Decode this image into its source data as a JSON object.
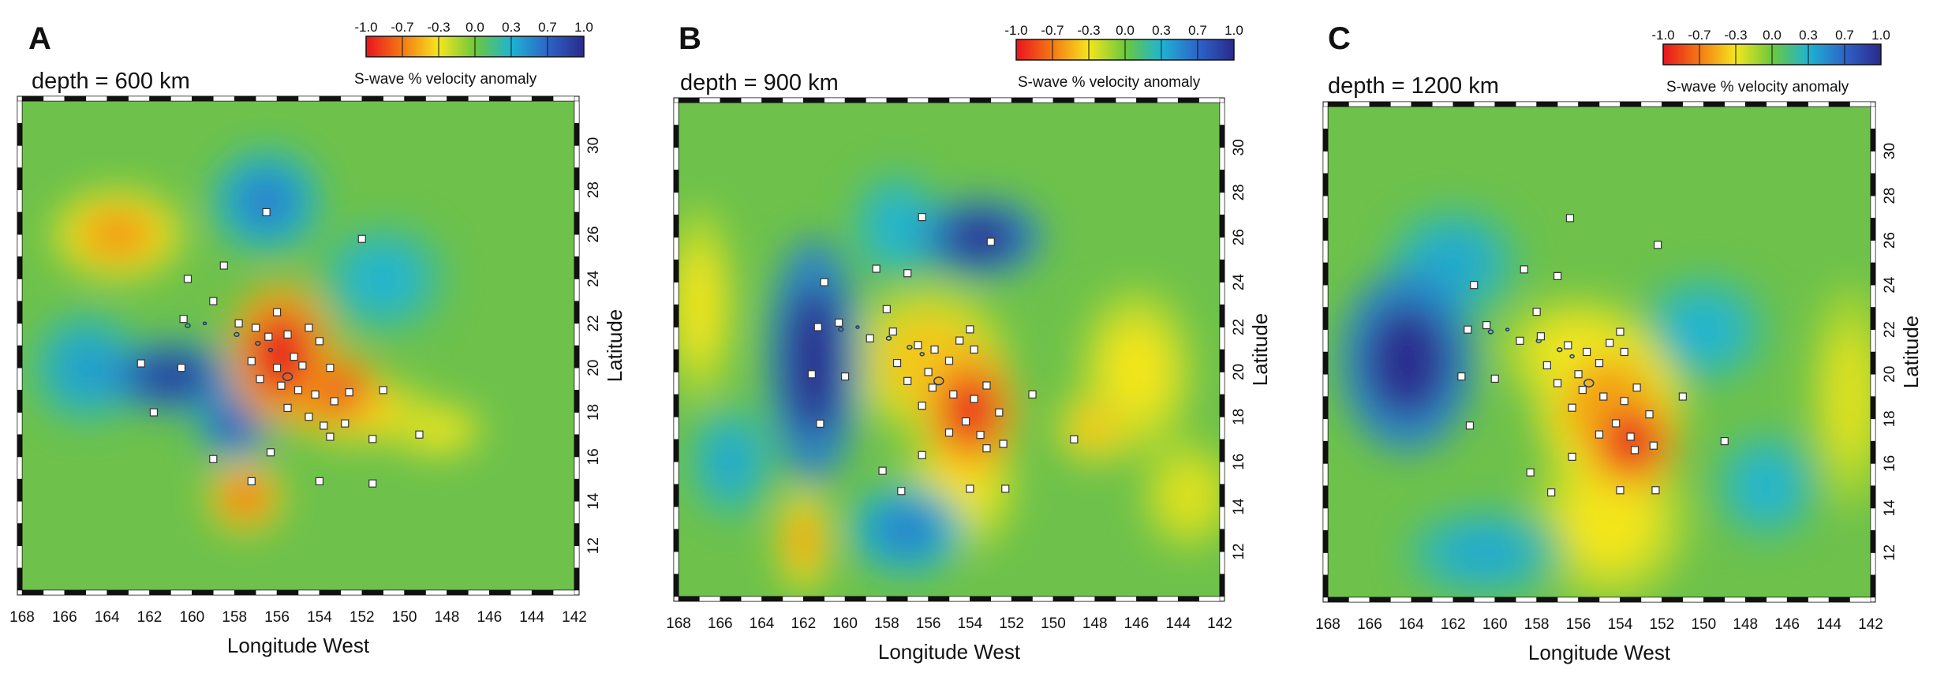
{
  "figure": {
    "colorbar": {
      "ticks": [
        "-1.0",
        "-0.7",
        "-0.3",
        "0.0",
        "0.3",
        "0.7",
        "1.0"
      ],
      "title": "S-wave % velocity anomaly",
      "colors": [
        "#e8141e",
        "#f47a14",
        "#f5e61e",
        "#6cc83c",
        "#1eb4d2",
        "#2d64c8",
        "#2a2a8c"
      ]
    },
    "xlabel": "Longitude West",
    "ylabel": "Latitude",
    "x_ticks": [
      "168",
      "166",
      "164",
      "162",
      "160",
      "158",
      "156",
      "154",
      "152",
      "150",
      "148",
      "146",
      "144",
      "142"
    ],
    "y_ticks": [
      "12",
      "14",
      "16",
      "18",
      "20",
      "22",
      "24",
      "26",
      "28",
      "30"
    ],
    "map_background": "#6ec24c"
  },
  "chart_data": [
    {
      "type": "heatmap",
      "panel": "A",
      "depth_label": "depth = 600 km",
      "xlim": [
        168,
        142
      ],
      "ylim": [
        10,
        32
      ],
      "xlabel": "Longitude West",
      "ylabel": "Latitude",
      "anomalies": [
        {
          "lon": 155.8,
          "lat": 20.6,
          "rx": 2.0,
          "ry": 2.6,
          "value": -1.0
        },
        {
          "lon": 153.5,
          "lat": 19.0,
          "rx": 2.0,
          "ry": 1.4,
          "value": -0.95
        },
        {
          "lon": 152.0,
          "lat": 18.0,
          "rx": 2.8,
          "ry": 1.2,
          "value": -0.4
        },
        {
          "lon": 157.5,
          "lat": 14.2,
          "rx": 1.4,
          "ry": 1.3,
          "value": -0.75
        },
        {
          "lon": 163.5,
          "lat": 26.0,
          "rx": 2.4,
          "ry": 1.6,
          "value": -0.6
        },
        {
          "lon": 148.5,
          "lat": 17.2,
          "rx": 1.8,
          "ry": 1.0,
          "value": -0.35
        },
        {
          "lon": 161.0,
          "lat": 19.6,
          "rx": 2.5,
          "ry": 1.3,
          "value": 0.95
        },
        {
          "lon": 158.0,
          "lat": 17.5,
          "rx": 1.4,
          "ry": 1.4,
          "value": 0.75
        },
        {
          "lon": 156.5,
          "lat": 27.5,
          "rx": 2.0,
          "ry": 1.8,
          "value": 0.55
        },
        {
          "lon": 165.0,
          "lat": 20.0,
          "rx": 2.0,
          "ry": 2.0,
          "value": 0.4
        },
        {
          "lon": 151.0,
          "lat": 24.0,
          "rx": 2.4,
          "ry": 2.0,
          "value": 0.3
        }
      ],
      "stations": [
        [
          156.5,
          27.0
        ],
        [
          152.0,
          25.8
        ],
        [
          158.5,
          24.6
        ],
        [
          160.2,
          24.0
        ],
        [
          159.0,
          23.0
        ],
        [
          156.0,
          22.5
        ],
        [
          157.8,
          22.0
        ],
        [
          157.0,
          21.8
        ],
        [
          156.4,
          21.4
        ],
        [
          155.5,
          21.5
        ],
        [
          154.5,
          21.8
        ],
        [
          154.0,
          21.2
        ],
        [
          155.2,
          20.5
        ],
        [
          154.8,
          20.1
        ],
        [
          153.5,
          20.0
        ],
        [
          156.0,
          20.0
        ],
        [
          157.2,
          20.3
        ],
        [
          156.8,
          19.5
        ],
        [
          155.8,
          19.2
        ],
        [
          155.0,
          19.0
        ],
        [
          154.2,
          18.8
        ],
        [
          153.3,
          18.5
        ],
        [
          152.6,
          18.9
        ],
        [
          151.0,
          19.0
        ],
        [
          155.5,
          18.2
        ],
        [
          154.5,
          17.8
        ],
        [
          153.8,
          17.4
        ],
        [
          152.8,
          17.5
        ],
        [
          153.5,
          16.9
        ],
        [
          151.5,
          16.8
        ],
        [
          149.3,
          17.0
        ],
        [
          156.3,
          16.2
        ],
        [
          159.0,
          15.9
        ],
        [
          157.2,
          14.9
        ],
        [
          154.0,
          14.9
        ],
        [
          151.5,
          14.8
        ],
        [
          162.4,
          20.2
        ],
        [
          160.5,
          20.0
        ],
        [
          161.8,
          18.0
        ],
        [
          160.4,
          22.2
        ]
      ]
    },
    {
      "type": "heatmap",
      "panel": "B",
      "depth_label": "depth = 900 km",
      "xlim": [
        168,
        142
      ],
      "ylim": [
        10,
        32
      ],
      "xlabel": "Longitude West",
      "ylabel": "Latitude",
      "anomalies": [
        {
          "lon": 161.5,
          "lat": 20.5,
          "rx": 1.8,
          "ry": 4.4,
          "value": 1.0
        },
        {
          "lon": 153.5,
          "lat": 26.0,
          "rx": 2.4,
          "ry": 1.4,
          "value": 1.0
        },
        {
          "lon": 154.0,
          "lat": 18.3,
          "rx": 1.8,
          "ry": 2.3,
          "value": -0.95
        },
        {
          "lon": 156.0,
          "lat": 20.5,
          "rx": 3.0,
          "ry": 2.6,
          "value": -0.45
        },
        {
          "lon": 154.5,
          "lat": 15.0,
          "rx": 2.2,
          "ry": 2.5,
          "value": -0.35
        },
        {
          "lon": 162.0,
          "lat": 12.5,
          "rx": 1.0,
          "ry": 1.8,
          "value": -0.6
        },
        {
          "lon": 167.0,
          "lat": 23.0,
          "rx": 1.3,
          "ry": 3.5,
          "value": -0.35
        },
        {
          "lon": 146.0,
          "lat": 20.0,
          "rx": 2.2,
          "ry": 3.0,
          "value": -0.35
        },
        {
          "lon": 148.0,
          "lat": 17.5,
          "rx": 1.5,
          "ry": 1.3,
          "value": -0.45
        },
        {
          "lon": 143.5,
          "lat": 14.5,
          "rx": 1.8,
          "ry": 2.0,
          "value": -0.3
        },
        {
          "lon": 157.0,
          "lat": 13.0,
          "rx": 2.2,
          "ry": 1.6,
          "value": 0.55
        },
        {
          "lon": 165.5,
          "lat": 16.0,
          "rx": 1.6,
          "ry": 2.0,
          "value": 0.35
        },
        {
          "lon": 157.5,
          "lat": 26.5,
          "rx": 1.8,
          "ry": 2.0,
          "value": 0.3
        }
      ],
      "stations": [
        [
          156.3,
          26.9
        ],
        [
          153.0,
          25.8
        ],
        [
          158.5,
          24.6
        ],
        [
          157.0,
          24.4
        ],
        [
          161.0,
          24.0
        ],
        [
          158.0,
          22.8
        ],
        [
          160.3,
          22.2
        ],
        [
          161.3,
          22.0
        ],
        [
          158.8,
          21.5
        ],
        [
          157.7,
          21.8
        ],
        [
          156.5,
          21.2
        ],
        [
          155.7,
          21.0
        ],
        [
          154.5,
          21.4
        ],
        [
          154.0,
          21.9
        ],
        [
          153.8,
          21.0
        ],
        [
          155.0,
          20.5
        ],
        [
          156.0,
          20.0
        ],
        [
          157.5,
          20.4
        ],
        [
          157.0,
          19.6
        ],
        [
          155.8,
          19.3
        ],
        [
          154.8,
          19.0
        ],
        [
          153.8,
          18.8
        ],
        [
          153.2,
          19.4
        ],
        [
          154.2,
          17.8
        ],
        [
          153.5,
          17.2
        ],
        [
          152.6,
          18.2
        ],
        [
          151.0,
          19.0
        ],
        [
          149.0,
          17.0
        ],
        [
          152.4,
          16.8
        ],
        [
          153.2,
          16.6
        ],
        [
          156.3,
          16.3
        ],
        [
          158.2,
          15.6
        ],
        [
          157.3,
          14.7
        ],
        [
          154.0,
          14.8
        ],
        [
          152.3,
          14.8
        ],
        [
          161.6,
          19.9
        ],
        [
          160.0,
          19.8
        ],
        [
          161.2,
          17.7
        ],
        [
          155.0,
          17.3
        ],
        [
          156.3,
          18.5
        ]
      ]
    },
    {
      "type": "heatmap",
      "panel": "C",
      "depth_label": "depth = 1200 km",
      "xlim": [
        168,
        142
      ],
      "ylim": [
        10,
        32
      ],
      "xlabel": "Longitude West",
      "ylabel": "Latitude",
      "anomalies": [
        {
          "lon": 164.2,
          "lat": 20.6,
          "rx": 2.6,
          "ry": 3.3,
          "value": 1.0
        },
        {
          "lon": 153.5,
          "lat": 17.0,
          "rx": 1.8,
          "ry": 1.8,
          "value": -1.0
        },
        {
          "lon": 154.5,
          "lat": 18.5,
          "rx": 2.8,
          "ry": 2.8,
          "value": -0.6
        },
        {
          "lon": 154.5,
          "lat": 13.5,
          "rx": 3.0,
          "ry": 3.0,
          "value": -0.35
        },
        {
          "lon": 156.0,
          "lat": 21.0,
          "rx": 3.0,
          "ry": 2.0,
          "value": -0.35
        },
        {
          "lon": 143.0,
          "lat": 19.0,
          "rx": 1.5,
          "ry": 4.0,
          "value": -0.3
        },
        {
          "lon": 160.5,
          "lat": 12.0,
          "rx": 3.0,
          "ry": 1.6,
          "value": 0.35
        },
        {
          "lon": 162.0,
          "lat": 25.0,
          "rx": 2.5,
          "ry": 2.0,
          "value": 0.35
        },
        {
          "lon": 150.0,
          "lat": 22.0,
          "rx": 2.5,
          "ry": 2.0,
          "value": 0.3
        },
        {
          "lon": 147.0,
          "lat": 15.0,
          "rx": 2.0,
          "ry": 2.0,
          "value": 0.3
        }
      ],
      "stations": [
        [
          156.4,
          27.0
        ],
        [
          152.2,
          25.8
        ],
        [
          158.6,
          24.7
        ],
        [
          157.0,
          24.4
        ],
        [
          161.0,
          24.0
        ],
        [
          158.0,
          22.8
        ],
        [
          160.4,
          22.2
        ],
        [
          161.3,
          22.0
        ],
        [
          158.8,
          21.5
        ],
        [
          157.8,
          21.7
        ],
        [
          156.5,
          21.3
        ],
        [
          155.6,
          21.0
        ],
        [
          154.5,
          21.4
        ],
        [
          154.0,
          21.9
        ],
        [
          153.8,
          21.0
        ],
        [
          155.0,
          20.5
        ],
        [
          156.0,
          20.0
        ],
        [
          157.5,
          20.4
        ],
        [
          157.0,
          19.6
        ],
        [
          155.8,
          19.3
        ],
        [
          154.8,
          19.0
        ],
        [
          153.8,
          18.8
        ],
        [
          153.2,
          19.4
        ],
        [
          154.2,
          17.8
        ],
        [
          153.5,
          17.2
        ],
        [
          152.6,
          18.2
        ],
        [
          151.0,
          19.0
        ],
        [
          149.0,
          17.0
        ],
        [
          152.4,
          16.8
        ],
        [
          153.3,
          16.6
        ],
        [
          156.3,
          16.3
        ],
        [
          158.3,
          15.6
        ],
        [
          157.3,
          14.7
        ],
        [
          154.0,
          14.8
        ],
        [
          152.3,
          14.8
        ],
        [
          161.6,
          19.9
        ],
        [
          160.0,
          19.8
        ],
        [
          161.2,
          17.7
        ],
        [
          155.0,
          17.3
        ],
        [
          156.3,
          18.5
        ]
      ]
    }
  ]
}
